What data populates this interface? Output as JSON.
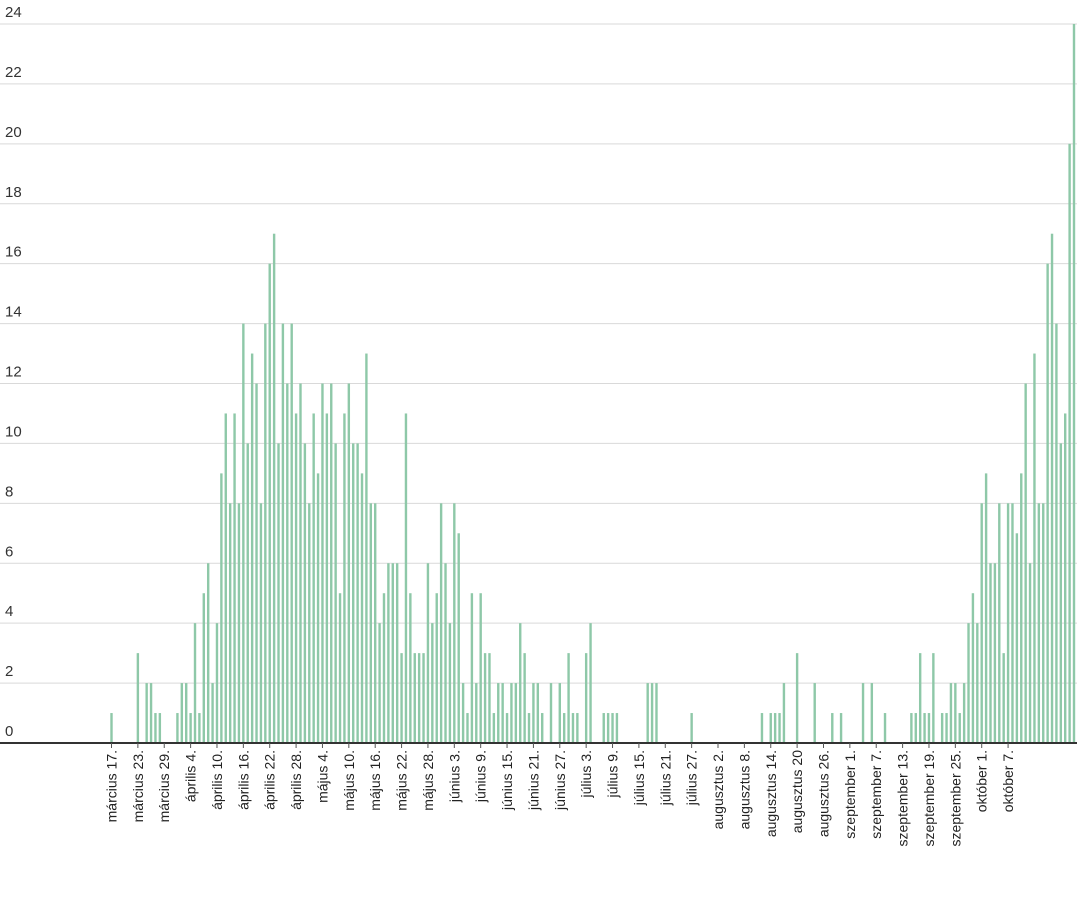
{
  "chart_data": {
    "type": "bar",
    "title": "",
    "xlabel": "",
    "ylabel": "",
    "ylim": [
      0,
      24
    ],
    "yticks": [
      0,
      2,
      4,
      6,
      8,
      10,
      12,
      14,
      16,
      18,
      20,
      22,
      24
    ],
    "grid": true,
    "legend": "none",
    "bar_color": "#8ec8a8",
    "start_date": "március 17.",
    "values": [
      1,
      0,
      0,
      0,
      0,
      0,
      3,
      0,
      2,
      2,
      1,
      1,
      0,
      0,
      0,
      1,
      2,
      2,
      1,
      4,
      1,
      5,
      6,
      2,
      4,
      9,
      11,
      8,
      11,
      8,
      14,
      10,
      13,
      12,
      8,
      14,
      16,
      17,
      10,
      14,
      12,
      14,
      11,
      12,
      10,
      8,
      11,
      9,
      12,
      11,
      12,
      10,
      5,
      11,
      12,
      10,
      10,
      9,
      13,
      8,
      8,
      4,
      5,
      6,
      6,
      6,
      3,
      11,
      5,
      3,
      3,
      3,
      6,
      4,
      5,
      8,
      6,
      4,
      8,
      7,
      2,
      1,
      5,
      2,
      5,
      3,
      3,
      1,
      2,
      2,
      1,
      2,
      2,
      4,
      3,
      1,
      2,
      2,
      1,
      0,
      2,
      0,
      2,
      1,
      3,
      1,
      1,
      0,
      3,
      4,
      0,
      0,
      1,
      1,
      1,
      1,
      0,
      0,
      0,
      0,
      0,
      0,
      2,
      2,
      2,
      0,
      0,
      0,
      0,
      0,
      0,
      0,
      1,
      0,
      0,
      0,
      0,
      0,
      0,
      0,
      0,
      0,
      0,
      0,
      0,
      0,
      0,
      0,
      1,
      0,
      1,
      1,
      1,
      2,
      0,
      0,
      3,
      0,
      0,
      0,
      2,
      0,
      0,
      0,
      1,
      0,
      1,
      0,
      0,
      0,
      0,
      2,
      0,
      2,
      0,
      0,
      1,
      0,
      0,
      0,
      0,
      0,
      1,
      1,
      3,
      1,
      1,
      3,
      0,
      1,
      1,
      2,
      2,
      1,
      2,
      4,
      5,
      4,
      8,
      9,
      6,
      6,
      8,
      3,
      8,
      8,
      7,
      9,
      12,
      6,
      13,
      8,
      8,
      16,
      17,
      14,
      10,
      11,
      20,
      24
    ],
    "tick_every": 6,
    "tick_labels": [
      "március 17.",
      "március 23.",
      "március 29.",
      "április 4.",
      "április 10.",
      "április 16.",
      "április 22.",
      "április 28.",
      "május 4.",
      "május 10.",
      "május 16.",
      "május 22.",
      "május 28.",
      "június 3.",
      "június 9.",
      "június 15.",
      "június 21.",
      "június 27.",
      "július 3.",
      "július 9.",
      "július 15.",
      "július 21.",
      "július 27.",
      "augusztus 2.",
      "augusztus 8.",
      "augusztus 14.",
      "augusztus 20",
      "augusztus 26.",
      "szeptember 1.",
      "szeptember 7.",
      "szeptember 13.",
      "szeptember 19.",
      "szeptember 25.",
      "október 1.",
      "október 7."
    ]
  }
}
